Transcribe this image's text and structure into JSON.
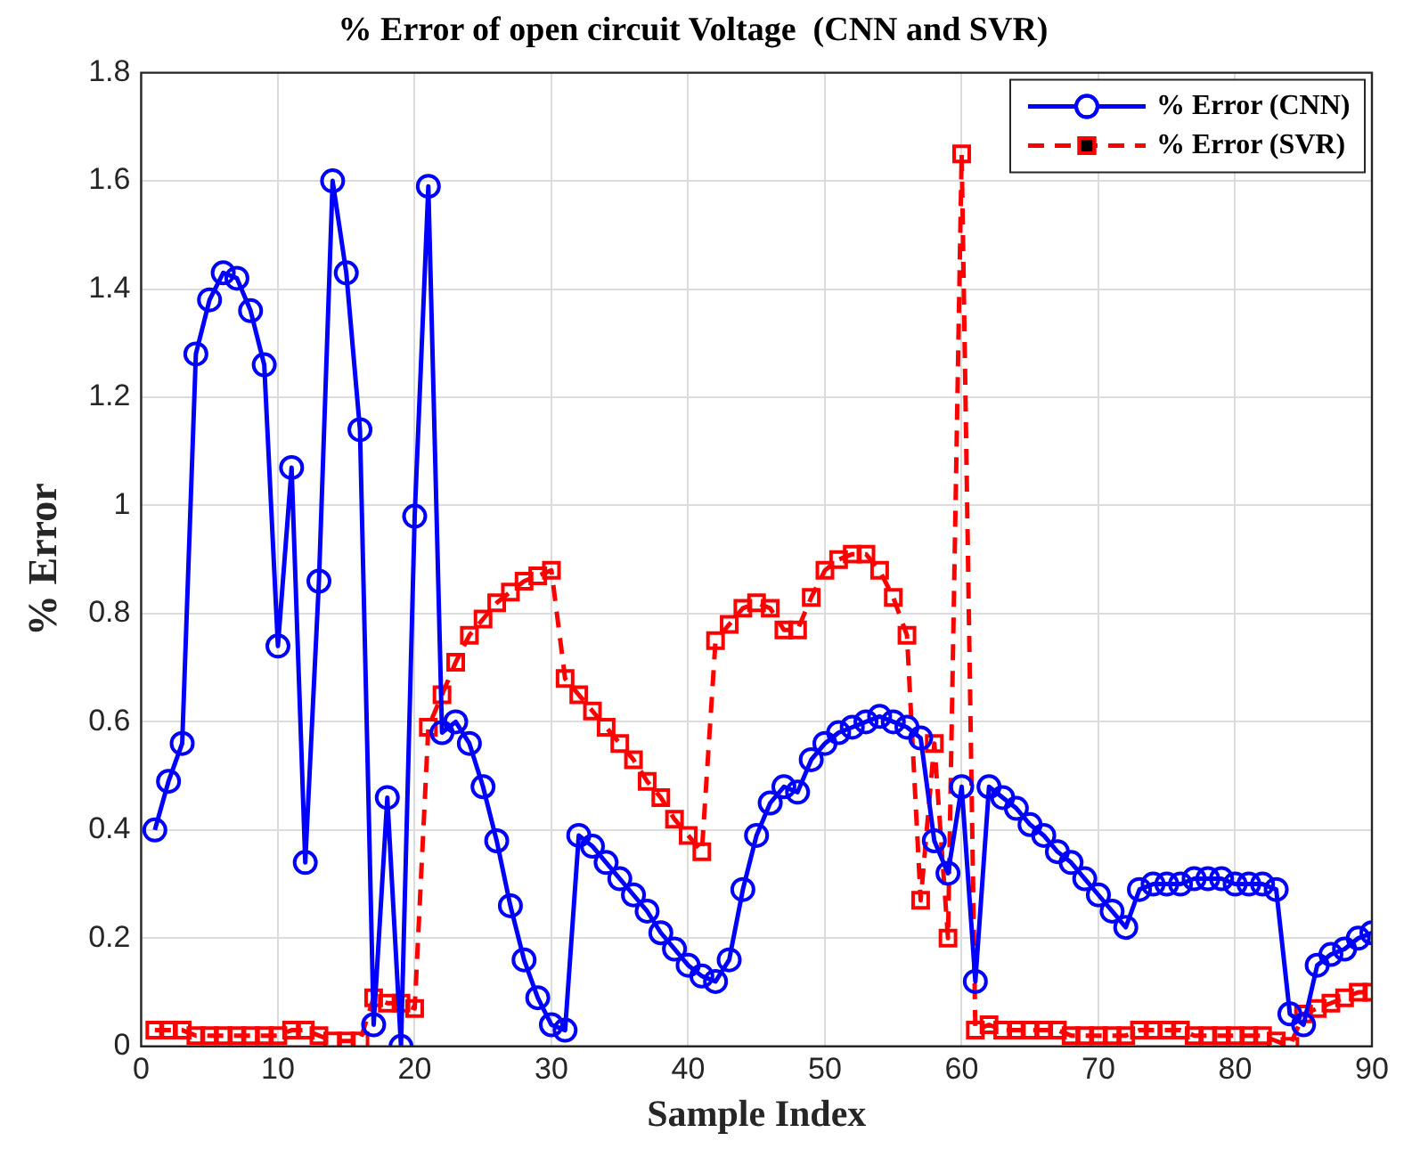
{
  "chart_data": {
    "type": "line",
    "title": "% Error of open circuit Voltage  (CNN and SVR)",
    "xlabel": "Sample Index",
    "ylabel": "% Error",
    "x": [
      1,
      2,
      3,
      4,
      5,
      6,
      7,
      8,
      9,
      10,
      11,
      12,
      13,
      14,
      15,
      16,
      17,
      18,
      19,
      20,
      21,
      22,
      23,
      24,
      25,
      26,
      27,
      28,
      29,
      30,
      31,
      32,
      33,
      34,
      35,
      36,
      37,
      38,
      39,
      40,
      41,
      42,
      43,
      44,
      45,
      46,
      47,
      48,
      49,
      50,
      51,
      52,
      53,
      54,
      55,
      56,
      57,
      58,
      59,
      60,
      61,
      62,
      63,
      64,
      65,
      66,
      67,
      68,
      69,
      70,
      71,
      72,
      73,
      74,
      75,
      76,
      77,
      78,
      79,
      80,
      81,
      82,
      83,
      84,
      85,
      86,
      87,
      88,
      89,
      90
    ],
    "series": [
      {
        "name": "% Error (CNN)",
        "color": "#0000ff",
        "marker": "circle",
        "line_style": "solid",
        "values": [
          0.4,
          0.49,
          0.56,
          1.28,
          1.38,
          1.43,
          1.42,
          1.36,
          1.26,
          0.74,
          1.07,
          0.34,
          0.86,
          1.6,
          1.43,
          1.14,
          0.04,
          0.46,
          0.0,
          0.98,
          1.59,
          0.58,
          0.6,
          0.56,
          0.48,
          0.38,
          0.26,
          0.16,
          0.09,
          0.04,
          0.03,
          0.39,
          0.37,
          0.34,
          0.31,
          0.28,
          0.25,
          0.21,
          0.18,
          0.15,
          0.13,
          0.12,
          0.16,
          0.29,
          0.39,
          0.45,
          0.48,
          0.47,
          0.53,
          0.56,
          0.58,
          0.59,
          0.6,
          0.61,
          0.6,
          0.59,
          0.57,
          0.38,
          0.32,
          0.48,
          0.12,
          0.48,
          0.46,
          0.44,
          0.41,
          0.39,
          0.36,
          0.34,
          0.31,
          0.28,
          0.25,
          0.22,
          0.29,
          0.3,
          0.3,
          0.3,
          0.31,
          0.31,
          0.31,
          0.3,
          0.3,
          0.3,
          0.29,
          0.06,
          0.04,
          0.15,
          0.17,
          0.18,
          0.2,
          0.21
        ]
      },
      {
        "name": "% Error (SVR)",
        "color": "#ff0000",
        "marker": "square",
        "line_style": "dashed",
        "values": [
          0.03,
          0.03,
          0.03,
          0.02,
          0.02,
          0.02,
          0.02,
          0.02,
          0.02,
          0.02,
          0.03,
          0.03,
          0.02,
          0.01,
          0.01,
          0.01,
          0.09,
          0.08,
          0.08,
          0.07,
          0.59,
          0.65,
          0.71,
          0.76,
          0.79,
          0.82,
          0.84,
          0.86,
          0.87,
          0.88,
          0.68,
          0.65,
          0.62,
          0.59,
          0.56,
          0.53,
          0.49,
          0.46,
          0.42,
          0.39,
          0.36,
          0.75,
          0.78,
          0.81,
          0.82,
          0.81,
          0.77,
          0.77,
          0.83,
          0.88,
          0.9,
          0.91,
          0.91,
          0.88,
          0.83,
          0.76,
          0.27,
          0.56,
          0.2,
          1.65,
          0.03,
          0.04,
          0.03,
          0.03,
          0.03,
          0.03,
          0.03,
          0.02,
          0.02,
          0.02,
          0.02,
          0.02,
          0.03,
          0.03,
          0.03,
          0.03,
          0.02,
          0.02,
          0.02,
          0.02,
          0.02,
          0.02,
          0.01,
          0.0,
          0.06,
          0.07,
          0.08,
          0.09,
          0.1,
          0.1
        ]
      }
    ],
    "xlim": [
      0,
      90
    ],
    "xticks": [
      0,
      10,
      20,
      30,
      40,
      50,
      60,
      70,
      80,
      90
    ],
    "ylim": [
      0,
      1.8
    ],
    "yticks": [
      0,
      0.2,
      0.4,
      0.6,
      0.8,
      1,
      1.2,
      1.4,
      1.6,
      1.8
    ],
    "grid": true,
    "legend": "top right"
  }
}
